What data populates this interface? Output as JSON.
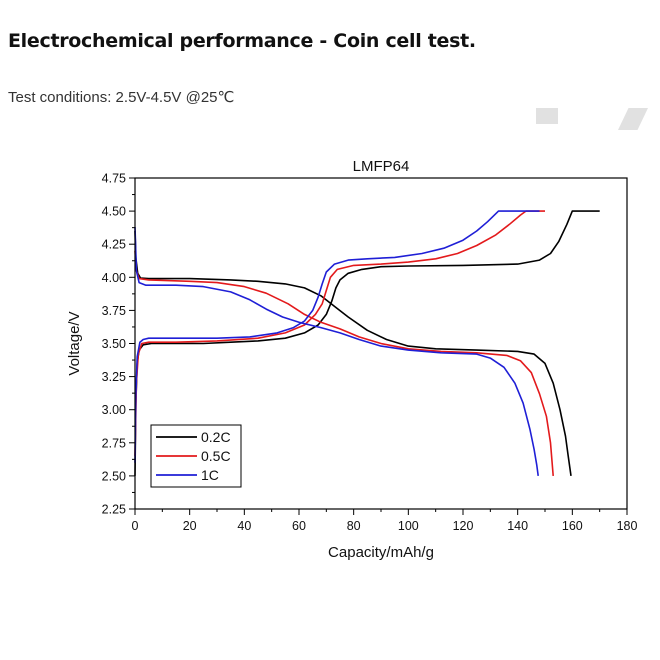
{
  "page": {
    "title": "Electrochemical performance - Coin cell test.",
    "subtitle": "Test conditions: 2.5V-4.5V @25℃"
  },
  "chart_data": {
    "type": "line",
    "title": "LMFP64",
    "xlabel": "Capacity/mAh/g",
    "ylabel": "Voltage/V",
    "xlim": [
      0,
      180
    ],
    "ylim": [
      2.25,
      4.75
    ],
    "xticks": [
      "0",
      "20",
      "40",
      "60",
      "80",
      "100",
      "120",
      "140",
      "160",
      "180"
    ],
    "yticks": [
      "2.25",
      "2.50",
      "2.75",
      "3.00",
      "3.25",
      "3.50",
      "3.75",
      "4.00",
      "4.25",
      "4.50",
      "4.75"
    ],
    "grid": false,
    "legend_position": "bottom-left",
    "series": [
      {
        "name": "0.2C",
        "color": "#000000",
        "charge": [
          [
            0,
            2.5
          ],
          [
            0.3,
            3.05
          ],
          [
            0.8,
            3.35
          ],
          [
            1.5,
            3.45
          ],
          [
            3,
            3.49
          ],
          [
            6,
            3.5
          ],
          [
            15,
            3.5
          ],
          [
            25,
            3.5
          ],
          [
            35,
            3.51
          ],
          [
            45,
            3.52
          ],
          [
            55,
            3.54
          ],
          [
            62,
            3.58
          ],
          [
            67,
            3.64
          ],
          [
            70,
            3.72
          ],
          [
            72,
            3.82
          ],
          [
            73.5,
            3.92
          ],
          [
            75,
            3.98
          ],
          [
            78,
            4.03
          ],
          [
            83,
            4.06
          ],
          [
            90,
            4.08
          ],
          [
            100,
            4.085
          ],
          [
            120,
            4.09
          ],
          [
            140,
            4.1
          ],
          [
            148,
            4.13
          ],
          [
            152,
            4.18
          ],
          [
            155,
            4.27
          ],
          [
            158,
            4.4
          ],
          [
            160,
            4.5
          ],
          [
            170,
            4.5
          ]
        ],
        "discharge": [
          [
            0,
            4.35
          ],
          [
            0.3,
            4.15
          ],
          [
            1,
            4.03
          ],
          [
            2,
            3.995
          ],
          [
            5,
            3.99
          ],
          [
            20,
            3.99
          ],
          [
            35,
            3.98
          ],
          [
            45,
            3.97
          ],
          [
            55,
            3.95
          ],
          [
            62,
            3.92
          ],
          [
            68,
            3.86
          ],
          [
            73,
            3.78
          ],
          [
            78,
            3.7
          ],
          [
            85,
            3.6
          ],
          [
            92,
            3.53
          ],
          [
            100,
            3.48
          ],
          [
            110,
            3.46
          ],
          [
            125,
            3.45
          ],
          [
            140,
            3.44
          ],
          [
            146,
            3.42
          ],
          [
            150,
            3.35
          ],
          [
            153,
            3.2
          ],
          [
            155.5,
            3.0
          ],
          [
            157.5,
            2.8
          ],
          [
            158.5,
            2.65
          ],
          [
            159.5,
            2.5
          ]
        ]
      },
      {
        "name": "0.5C",
        "color": "#e31a1c",
        "charge": [
          [
            0,
            2.65
          ],
          [
            0.5,
            3.2
          ],
          [
            1.2,
            3.42
          ],
          [
            2.5,
            3.5
          ],
          [
            5,
            3.51
          ],
          [
            15,
            3.51
          ],
          [
            30,
            3.52
          ],
          [
            45,
            3.54
          ],
          [
            55,
            3.58
          ],
          [
            62,
            3.64
          ],
          [
            66,
            3.72
          ],
          [
            68.5,
            3.8
          ],
          [
            70,
            3.9
          ],
          [
            71.5,
            4.0
          ],
          [
            74,
            4.06
          ],
          [
            80,
            4.09
          ],
          [
            90,
            4.1
          ],
          [
            100,
            4.115
          ],
          [
            110,
            4.14
          ],
          [
            118,
            4.18
          ],
          [
            125,
            4.24
          ],
          [
            132,
            4.32
          ],
          [
            137,
            4.4
          ],
          [
            141,
            4.47
          ],
          [
            143,
            4.5
          ],
          [
            150,
            4.5
          ]
        ],
        "discharge": [
          [
            0,
            4.2
          ],
          [
            0.5,
            4.05
          ],
          [
            1.5,
            3.99
          ],
          [
            5,
            3.98
          ],
          [
            20,
            3.97
          ],
          [
            30,
            3.96
          ],
          [
            40,
            3.93
          ],
          [
            48,
            3.88
          ],
          [
            56,
            3.8
          ],
          [
            62,
            3.72
          ],
          [
            68,
            3.66
          ],
          [
            75,
            3.61
          ],
          [
            82,
            3.55
          ],
          [
            90,
            3.5
          ],
          [
            100,
            3.46
          ],
          [
            112,
            3.44
          ],
          [
            125,
            3.43
          ],
          [
            136,
            3.41
          ],
          [
            141,
            3.37
          ],
          [
            145,
            3.28
          ],
          [
            148,
            3.12
          ],
          [
            150.5,
            2.95
          ],
          [
            152,
            2.75
          ],
          [
            153,
            2.5
          ]
        ]
      },
      {
        "name": "1C",
        "color": "#1f1fd6",
        "charge": [
          [
            0,
            2.6
          ],
          [
            0.3,
            3.1
          ],
          [
            0.8,
            3.4
          ],
          [
            1.8,
            3.51
          ],
          [
            3,
            3.53
          ],
          [
            5,
            3.54
          ],
          [
            15,
            3.54
          ],
          [
            30,
            3.54
          ],
          [
            42,
            3.55
          ],
          [
            52,
            3.58
          ],
          [
            58,
            3.62
          ],
          [
            62,
            3.67
          ],
          [
            65,
            3.75
          ],
          [
            67,
            3.85
          ],
          [
            68.5,
            3.95
          ],
          [
            70,
            4.04
          ],
          [
            73,
            4.1
          ],
          [
            78,
            4.13
          ],
          [
            85,
            4.14
          ],
          [
            95,
            4.15
          ],
          [
            105,
            4.18
          ],
          [
            113,
            4.22
          ],
          [
            120,
            4.28
          ],
          [
            125,
            4.35
          ],
          [
            129,
            4.42
          ],
          [
            131.5,
            4.47
          ],
          [
            133,
            4.5
          ],
          [
            148,
            4.5
          ]
        ],
        "discharge": [
          [
            0,
            4.38
          ],
          [
            0.5,
            4.05
          ],
          [
            1.5,
            3.96
          ],
          [
            4,
            3.94
          ],
          [
            15,
            3.94
          ],
          [
            25,
            3.93
          ],
          [
            35,
            3.89
          ],
          [
            42,
            3.83
          ],
          [
            48,
            3.76
          ],
          [
            54,
            3.7
          ],
          [
            60,
            3.66
          ],
          [
            68,
            3.62
          ],
          [
            75,
            3.58
          ],
          [
            82,
            3.53
          ],
          [
            90,
            3.48
          ],
          [
            100,
            3.45
          ],
          [
            112,
            3.43
          ],
          [
            125,
            3.42
          ],
          [
            130,
            3.39
          ],
          [
            135,
            3.32
          ],
          [
            139,
            3.2
          ],
          [
            142,
            3.05
          ],
          [
            144.5,
            2.85
          ],
          [
            146,
            2.7
          ],
          [
            147,
            2.58
          ],
          [
            147.5,
            2.5
          ]
        ]
      }
    ]
  }
}
